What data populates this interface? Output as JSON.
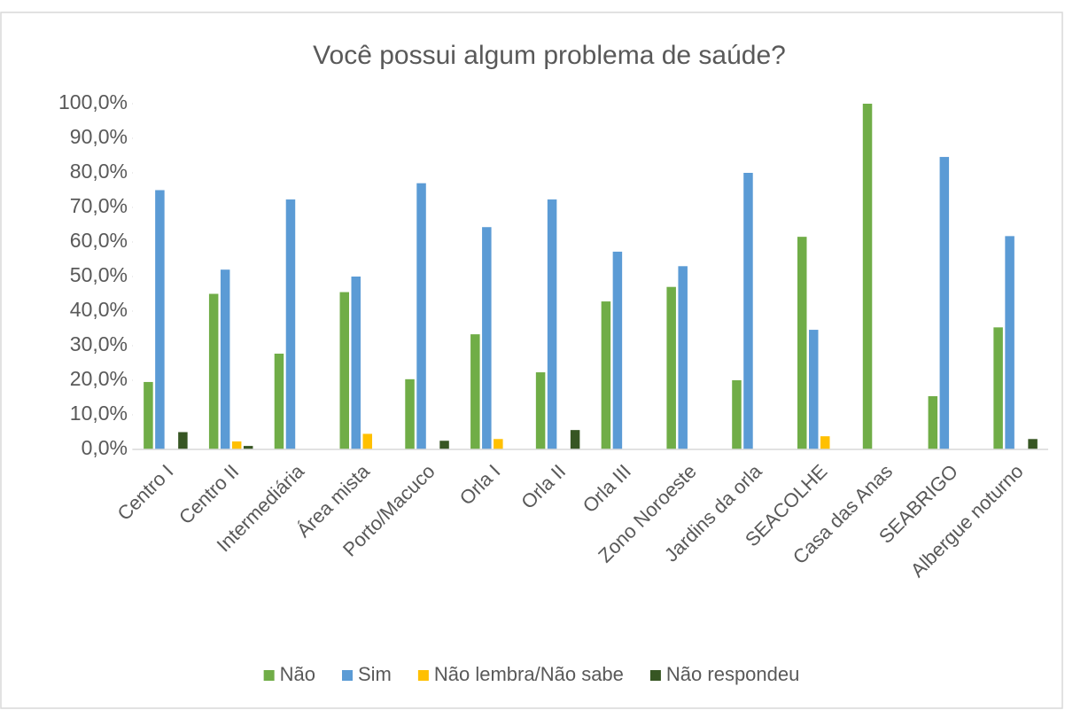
{
  "chart_data": {
    "type": "bar",
    "title": "Você possui algum problema de saúde?",
    "categories": [
      "Centro I",
      "Centro II",
      "Intermediária",
      "Área mista",
      "Porto/Macuco",
      "Orla I",
      "Orla II",
      "Orla III",
      "Zono Noroeste",
      "Jardins da orla",
      "SEACOLHE",
      "Casa das Anas",
      "SEABRIGO",
      "Albergue noturno"
    ],
    "series": [
      {
        "name": "Não",
        "color": "#70ad47",
        "values": [
          19.5,
          45,
          27.7,
          45.5,
          20.3,
          33.3,
          22.3,
          42.8,
          47,
          20,
          61.5,
          100,
          15.4,
          35.3
        ]
      },
      {
        "name": "Sim",
        "color": "#5b9bd5",
        "values": [
          75,
          52,
          72.3,
          50,
          77,
          64.3,
          72.3,
          57.2,
          53,
          80,
          34.6,
          0,
          84.6,
          61.7
        ]
      },
      {
        "name": "Não lembra/Não sabe",
        "color": "#ffc000",
        "values": [
          0,
          2.3,
          0,
          4.5,
          0,
          3,
          0,
          0,
          0,
          0,
          3.8,
          0,
          0,
          0
        ]
      },
      {
        "name": "Não respondeu",
        "color": "#375623",
        "values": [
          5,
          1,
          0,
          0,
          2.5,
          0,
          5.6,
          0,
          0,
          0,
          0,
          0,
          0,
          3
        ]
      }
    ],
    "ylim": [
      0,
      100
    ],
    "yticks": [
      {
        "value": 0,
        "label": "0,0%"
      },
      {
        "value": 10,
        "label": "10,0%"
      },
      {
        "value": 20,
        "label": "20,0%"
      },
      {
        "value": 30,
        "label": "30,0%"
      },
      {
        "value": 40,
        "label": "40,0%"
      },
      {
        "value": 50,
        "label": "50,0%"
      },
      {
        "value": 60,
        "label": "60,0%"
      },
      {
        "value": 70,
        "label": "70,0%"
      },
      {
        "value": 80,
        "label": "80,0%"
      },
      {
        "value": 90,
        "label": "90,0%"
      },
      {
        "value": 100,
        "label": "100,0%"
      }
    ],
    "legend": "bottom"
  }
}
